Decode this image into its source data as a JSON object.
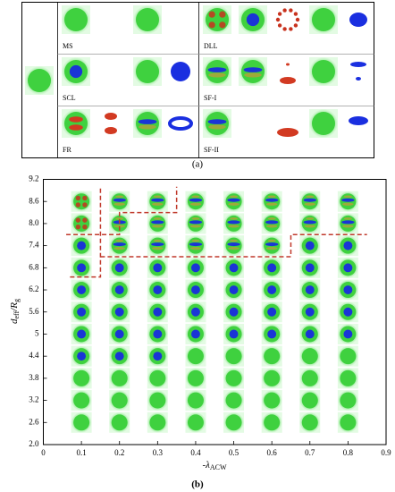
{
  "panel_a": {
    "label": "(a)",
    "cells": [
      "MS",
      "SCL",
      "FR",
      "DLL",
      "SF-I",
      "SF-II"
    ]
  },
  "chart_data": {
    "type": "scatter",
    "label": "(b)",
    "x_label": {
      "main": "-λ",
      "sub": "ACW"
    },
    "y_label": {
      "main": "d",
      "sub": "eff",
      "main2": "/R",
      "sub2": "g"
    },
    "xlim": [
      0,
      0.9
    ],
    "ylim": [
      2,
      9.2
    ],
    "xticks": [
      0,
      0.1,
      0.2,
      0.3,
      0.4,
      0.5,
      0.6,
      0.7,
      0.8,
      0.9
    ],
    "yticks": [
      {
        "value": 2,
        "label": "2.0"
      },
      2.6,
      3.2,
      3.8,
      4.4,
      5,
      5.6,
      6.2,
      6.8,
      7.4,
      {
        "value": 8,
        "label": "8.0"
      },
      8.6,
      9.2
    ],
    "series": [
      {
        "pattern": "plain",
        "color": "#3fd13f",
        "x": [
          0.1,
          0.2,
          0.3,
          0.4,
          0.5,
          0.6,
          0.7,
          0.8,
          0.1,
          0.2,
          0.3,
          0.4,
          0.5,
          0.6,
          0.7,
          0.8,
          0.1,
          0.2,
          0.3,
          0.4,
          0.5,
          0.6,
          0.7,
          0.8,
          0.4,
          0.5,
          0.6,
          0.7,
          0.8
        ],
        "y": [
          2.6,
          2.6,
          2.6,
          2.6,
          2.6,
          2.6,
          2.6,
          2.6,
          3.2,
          3.2,
          3.2,
          3.2,
          3.2,
          3.2,
          3.2,
          3.2,
          3.8,
          3.8,
          3.8,
          3.8,
          3.8,
          3.8,
          3.8,
          3.8,
          4.4,
          4.4,
          4.4,
          4.4,
          4.4
        ]
      },
      {
        "pattern": "core",
        "color": "#1a35d6",
        "x": [
          0.1,
          0.1,
          0.1,
          0.1,
          0.1,
          0.1,
          0.2,
          0.2,
          0.2,
          0.2,
          0.2,
          0.3,
          0.3,
          0.3,
          0.3,
          0.3,
          0.4,
          0.4,
          0.4,
          0.4,
          0.5,
          0.5,
          0.5,
          0.5,
          0.6,
          0.6,
          0.6,
          0.6,
          0.7,
          0.7,
          0.7,
          0.7,
          0.7,
          0.8,
          0.8,
          0.8,
          0.8,
          0.8
        ],
        "y": [
          4.4,
          5,
          5.6,
          6.2,
          6.8,
          7.4,
          4.4,
          5,
          5.6,
          6.2,
          6.8,
          4.4,
          5,
          5.6,
          6.2,
          6.8,
          5,
          5.6,
          6.2,
          6.8,
          5,
          5.6,
          6.2,
          6.8,
          5,
          5.6,
          6.2,
          6.8,
          5,
          5.6,
          6.2,
          6.8,
          7.4,
          5,
          5.6,
          6.2,
          6.8,
          7.4
        ]
      },
      {
        "pattern": "stripe",
        "color": "#1a35d6",
        "x": [
          0.2,
          0.2,
          0.2,
          0.3,
          0.3,
          0.3,
          0.4,
          0.4,
          0.4,
          0.5,
          0.5,
          0.5,
          0.6,
          0.6,
          0.6,
          0.7,
          0.7,
          0.8,
          0.8
        ],
        "y": [
          7.4,
          8,
          8.6,
          7.4,
          8,
          8.6,
          7.4,
          8,
          8.6,
          7.4,
          8,
          8.6,
          7.4,
          8,
          8.6,
          8,
          8.6,
          8,
          8.6
        ]
      },
      {
        "pattern": "dots",
        "color": "#c8321e",
        "x": [
          0.1,
          0.1
        ],
        "y": [
          8,
          8.6
        ]
      }
    ],
    "boundaries": [
      {
        "color": "#c0392b",
        "x": [
          0.07,
          0.15,
          0.15
        ],
        "y": [
          6.55,
          6.55,
          9.0
        ]
      },
      {
        "color": "#c0392b",
        "x": [
          0.15,
          0.65,
          0.65,
          0.85
        ],
        "y": [
          7.1,
          7.1,
          7.7,
          7.7
        ]
      },
      {
        "color": "#c0392b",
        "x": [
          0.06,
          0.2,
          0.2,
          0.35,
          0.35
        ],
        "y": [
          7.7,
          7.7,
          8.3,
          8.3,
          9.0
        ]
      }
    ]
  }
}
